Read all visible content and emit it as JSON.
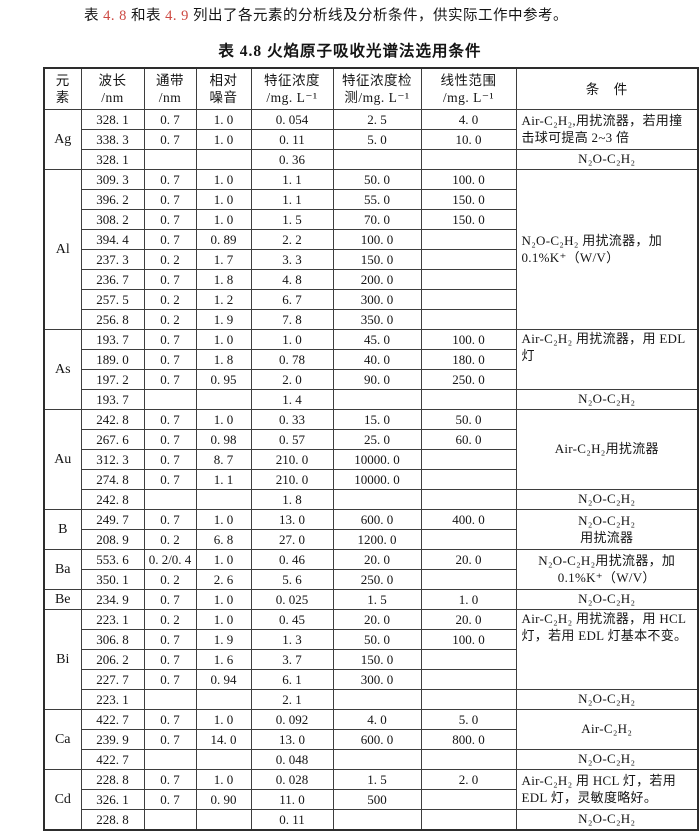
{
  "intro": {
    "seg1": "表 ",
    "ref1": "4. 8",
    "seg2": " 和表 ",
    "ref2": "4. 9",
    "seg3": " 列出了各元素的分析线及分析条件，供实际工作中参考。"
  },
  "accent_red": "#cd4a43",
  "table": {
    "title": "表 4.8  火焰原子吸收光谱法选用条件",
    "headers": [
      "元\n素",
      "波长\n/nm",
      "通带\n/nm",
      "相对\n噪音",
      "特征浓度\n/mg. L⁻¹",
      "特征浓度检\n测/mg. L⁻¹",
      "线性范围\n/mg. L⁻¹",
      "条　件"
    ],
    "sections": [
      {
        "element": "Ag",
        "rows": [
          [
            "328. 1",
            "0. 7",
            "1. 0",
            "0. 054",
            "2. 5",
            "4. 0"
          ],
          [
            "338. 3",
            "0. 7",
            "1. 0",
            "0. 11",
            "5. 0",
            "10. 0"
          ],
          [
            "328. 1",
            "",
            "",
            "0. 36",
            "",
            ""
          ]
        ],
        "conditions": [
          {
            "text": "Air-C₂H₂,用扰流器，若用撞击球可提高 2~3 倍",
            "rows": 2,
            "align": "left",
            "valign": "middle"
          },
          {
            "text": "N₂O-C₂H₂",
            "rows": 1,
            "align": "center",
            "valign": "middle"
          }
        ]
      },
      {
        "element": "Al",
        "rows": [
          [
            "309. 3",
            "0. 7",
            "1. 0",
            "1. 1",
            "50. 0",
            "100. 0"
          ],
          [
            "396. 2",
            "0. 7",
            "1. 0",
            "1. 1",
            "55. 0",
            "150. 0"
          ],
          [
            "308. 2",
            "0. 7",
            "1. 0",
            "1. 5",
            "70. 0",
            "150. 0"
          ],
          [
            "394. 4",
            "0. 7",
            "0. 89",
            "2. 2",
            "100. 0",
            ""
          ],
          [
            "237. 3",
            "0. 2",
            "1. 7",
            "3. 3",
            "150. 0",
            ""
          ],
          [
            "236. 7",
            "0. 7",
            "1. 8",
            "4. 8",
            "200. 0",
            ""
          ],
          [
            "257. 5",
            "0. 2",
            "1. 2",
            "6. 7",
            "300. 0",
            ""
          ],
          [
            "256. 8",
            "0. 2",
            "1. 9",
            "7. 8",
            "350. 0",
            ""
          ]
        ],
        "conditions": [
          {
            "text": "N₂O-C₂H₂ 用扰流器，加 0.1%K⁺（W/V）",
            "rows": 8,
            "align": "left",
            "valign": "middle"
          }
        ]
      },
      {
        "element": "As",
        "rows": [
          [
            "193. 7",
            "0. 7",
            "1. 0",
            "1. 0",
            "45. 0",
            "100. 0"
          ],
          [
            "189. 0",
            "0. 7",
            "1. 8",
            "0. 78",
            "40. 0",
            "180. 0"
          ],
          [
            "197. 2",
            "0. 7",
            "0. 95",
            "2. 0",
            "90. 0",
            "250. 0"
          ],
          [
            "193. 7",
            "",
            "",
            "1. 4",
            "",
            ""
          ]
        ],
        "conditions": [
          {
            "text": "Air-C₂H₂ 用扰流器，用 EDL 灯",
            "rows": 3,
            "align": "left",
            "valign": "top"
          },
          {
            "text": "N₂O-C₂H₂",
            "rows": 1,
            "align": "center",
            "valign": "middle"
          }
        ]
      },
      {
        "element": "Au",
        "rows": [
          [
            "242. 8",
            "0. 7",
            "1. 0",
            "0. 33",
            "15. 0",
            "50. 0"
          ],
          [
            "267. 6",
            "0. 7",
            "0. 98",
            "0. 57",
            "25. 0",
            "60. 0"
          ],
          [
            "312. 3",
            "0. 7",
            "8. 7",
            "210. 0",
            "10000. 0",
            ""
          ],
          [
            "274. 8",
            "0. 7",
            "1. 1",
            "210. 0",
            "10000. 0",
            ""
          ],
          [
            "242. 8",
            "",
            "",
            "1. 8",
            "",
            ""
          ]
        ],
        "conditions": [
          {
            "text": "Air-C₂H₂用扰流器",
            "rows": 4,
            "align": "center",
            "valign": "middle"
          },
          {
            "text": "N₂O-C₂H₂",
            "rows": 1,
            "align": "center",
            "valign": "middle"
          }
        ]
      },
      {
        "element": "B",
        "rows": [
          [
            "249. 7",
            "0. 7",
            "1. 0",
            "13. 0",
            "600. 0",
            "400. 0"
          ],
          [
            "208. 9",
            "0. 2",
            "6. 8",
            "27. 0",
            "1200. 0",
            ""
          ]
        ],
        "conditions": [
          {
            "text": "N₂O-C₂H₂\n用扰流器",
            "rows": 2,
            "align": "center",
            "valign": "middle"
          }
        ]
      },
      {
        "element": "Ba",
        "rows": [
          [
            "553. 6",
            "0. 2/0. 4",
            "1. 0",
            "0. 46",
            "20. 0",
            "20. 0"
          ],
          [
            "350. 1",
            "0. 2",
            "2. 6",
            "5. 6",
            "250. 0",
            ""
          ]
        ],
        "conditions": [
          {
            "text": "N₂O-C₂H₂用扰流器，加 0.1%K⁺（W/V）",
            "rows": 2,
            "align": "center",
            "valign": "middle"
          }
        ]
      },
      {
        "element": "Be",
        "rows": [
          [
            "234. 9",
            "0. 7",
            "1. 0",
            "0. 025",
            "1. 5",
            "1. 0"
          ]
        ],
        "conditions": [
          {
            "text": "N₂O-C₂H₂",
            "rows": 1,
            "align": "center",
            "valign": "middle"
          }
        ]
      },
      {
        "element": "Bi",
        "rows": [
          [
            "223. 1",
            "0. 2",
            "1. 0",
            "0. 45",
            "20. 0",
            "20. 0"
          ],
          [
            "306. 8",
            "0. 7",
            "1. 9",
            "1. 3",
            "50. 0",
            "100. 0"
          ],
          [
            "206. 2",
            "0. 7",
            "1. 6",
            "3. 7",
            "150. 0",
            ""
          ],
          [
            "227. 7",
            "0. 7",
            "0. 94",
            "6. 1",
            "300. 0",
            ""
          ],
          [
            "223. 1",
            "",
            "",
            "2. 1",
            "",
            ""
          ]
        ],
        "conditions": [
          {
            "text": "Air-C₂H₂ 用扰流器，用 HCL 灯，若用 EDL 灯基本不变。",
            "rows": 4,
            "align": "left",
            "valign": "top"
          },
          {
            "text": "N₂O-C₂H₂",
            "rows": 1,
            "align": "center",
            "valign": "middle"
          }
        ]
      },
      {
        "element": "Ca",
        "rows": [
          [
            "422. 7",
            "0. 7",
            "1. 0",
            "0. 092",
            "4. 0",
            "5. 0"
          ],
          [
            "239. 9",
            "0. 7",
            "14. 0",
            "13. 0",
            "600. 0",
            "800. 0"
          ],
          [
            "422. 7",
            "",
            "",
            "0. 048",
            "",
            ""
          ]
        ],
        "conditions": [
          {
            "text": "Air-C₂H₂",
            "rows": 2,
            "align": "center",
            "valign": "middle"
          },
          {
            "text": "N₂O-C₂H₂",
            "rows": 1,
            "align": "center",
            "valign": "middle"
          }
        ]
      },
      {
        "element": "Cd",
        "rows": [
          [
            "228. 8",
            "0. 7",
            "1. 0",
            "0. 028",
            "1. 5",
            "2. 0"
          ],
          [
            "326. 1",
            "0. 7",
            "0. 90",
            "11. 0",
            "500",
            ""
          ],
          [
            "228. 8",
            "",
            "",
            "0. 11",
            "",
            ""
          ]
        ],
        "conditions": [
          {
            "text": "Air-C₂H₂ 用 HCL 灯，若用 EDL 灯，灵敏度略好。",
            "rows": 2,
            "align": "left",
            "valign": "middle"
          },
          {
            "text": "N₂O-C₂H₂",
            "rows": 1,
            "align": "center",
            "valign": "middle"
          }
        ]
      }
    ]
  }
}
